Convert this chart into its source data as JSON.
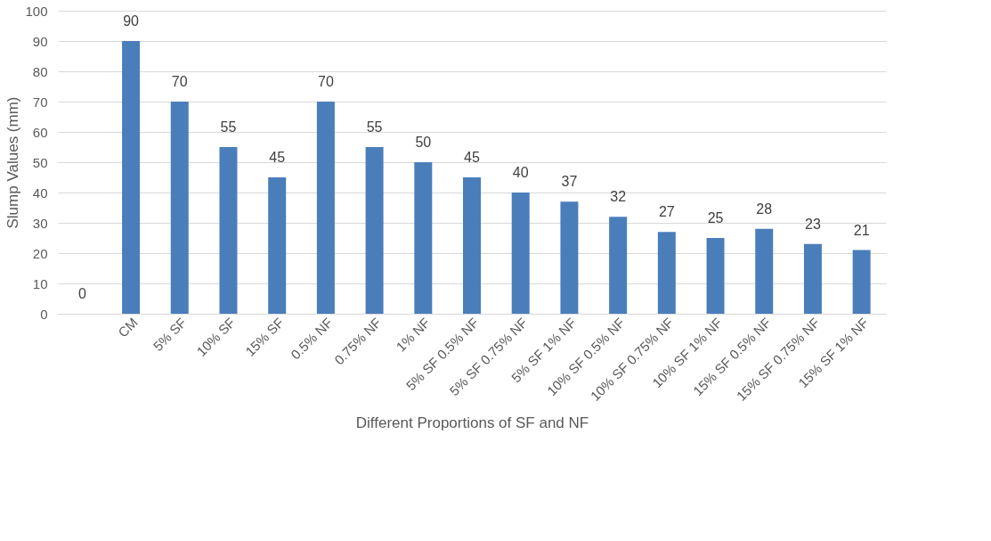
{
  "chart_data": {
    "type": "bar",
    "xlabel": "Different Proportions of SF and NF",
    "ylabel": "Slump Values (mm)",
    "categories": [
      null,
      "CM",
      "5% SF",
      "10% SF",
      "15% SF",
      "0.5% NF",
      "0.75% NF",
      "1% NF",
      "5% SF 0.5% NF",
      "5% SF 0.75% NF",
      "5% SF 1% NF",
      "10% SF 0.5% NF",
      "10% SF 0.75% NF",
      "10% SF 1% NF",
      "15% SF 0.5% NF",
      "15% SF 0.75% NF",
      "15% SF 1% NF"
    ],
    "values": [
      0,
      90,
      70,
      55,
      45,
      70,
      55,
      50,
      45,
      40,
      37,
      32,
      27,
      25,
      28,
      23,
      21
    ],
    "color": "#4a7ebb",
    "ylim": [
      0,
      100
    ],
    "yticks": [
      0,
      10,
      20,
      30,
      40,
      50,
      60,
      70,
      80,
      90,
      100
    ],
    "grid": "y",
    "data_labels": true
  }
}
